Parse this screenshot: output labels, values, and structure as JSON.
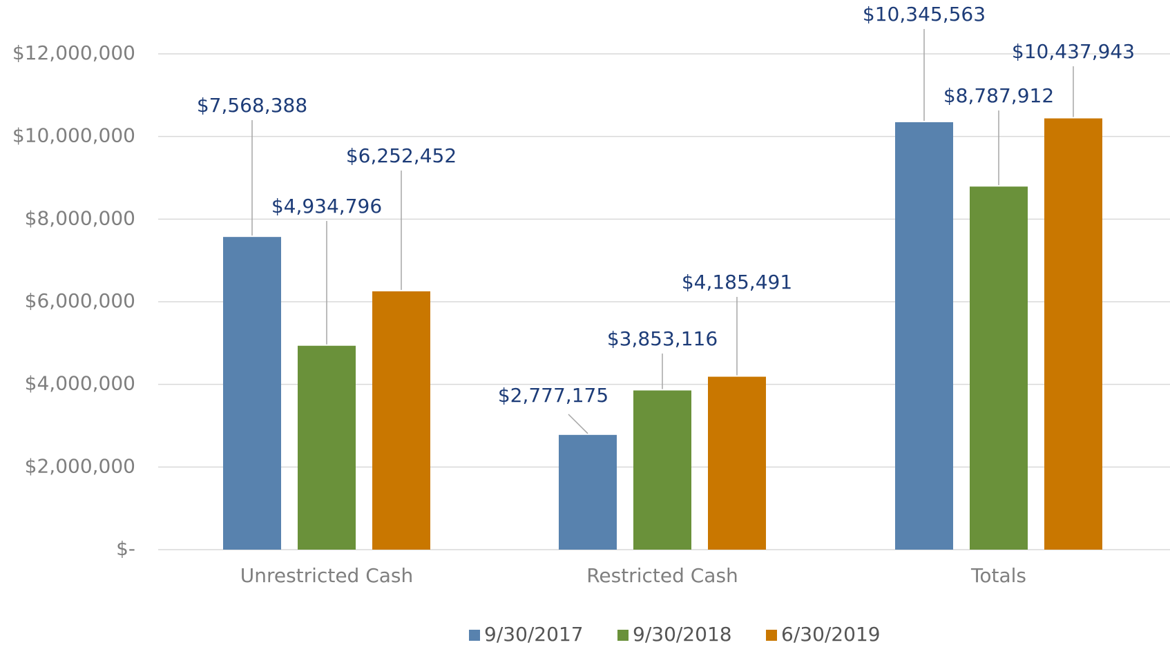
{
  "chart_data": {
    "type": "bar",
    "categories": [
      "Unrestricted Cash",
      "Restricted Cash",
      "Totals"
    ],
    "series": [
      {
        "name": "9/30/2017",
        "color": "#5882ae",
        "values": [
          7568388,
          2777175,
          10345563
        ],
        "value_labels": [
          "$7,568,388",
          "$2,777,175",
          "$10,345,563"
        ]
      },
      {
        "name": "9/30/2018",
        "color": "#6a913a",
        "values": [
          4934796,
          3853116,
          8787912
        ],
        "value_labels": [
          "$4,934,796",
          "$3,853,116",
          "$8,787,912"
        ]
      },
      {
        "name": "6/30/2019",
        "color": "#c97700",
        "values": [
          6252452,
          4185491,
          10437943
        ],
        "value_labels": [
          "$6,252,452",
          "$4,185,491",
          "$10,437,943"
        ]
      }
    ],
    "ylim": [
      0,
      12000000
    ],
    "yticks": [
      {
        "value": 0,
        "label": "$-"
      },
      {
        "value": 2000000,
        "label": "$2,000,000"
      },
      {
        "value": 4000000,
        "label": "$4,000,000"
      },
      {
        "value": 6000000,
        "label": "$6,000,000"
      },
      {
        "value": 8000000,
        "label": "$8,000,000"
      },
      {
        "value": 10000000,
        "label": "$10,000,000"
      },
      {
        "value": 12000000,
        "label": "$12,000,000"
      }
    ],
    "grid": true,
    "legend": "bottom"
  }
}
